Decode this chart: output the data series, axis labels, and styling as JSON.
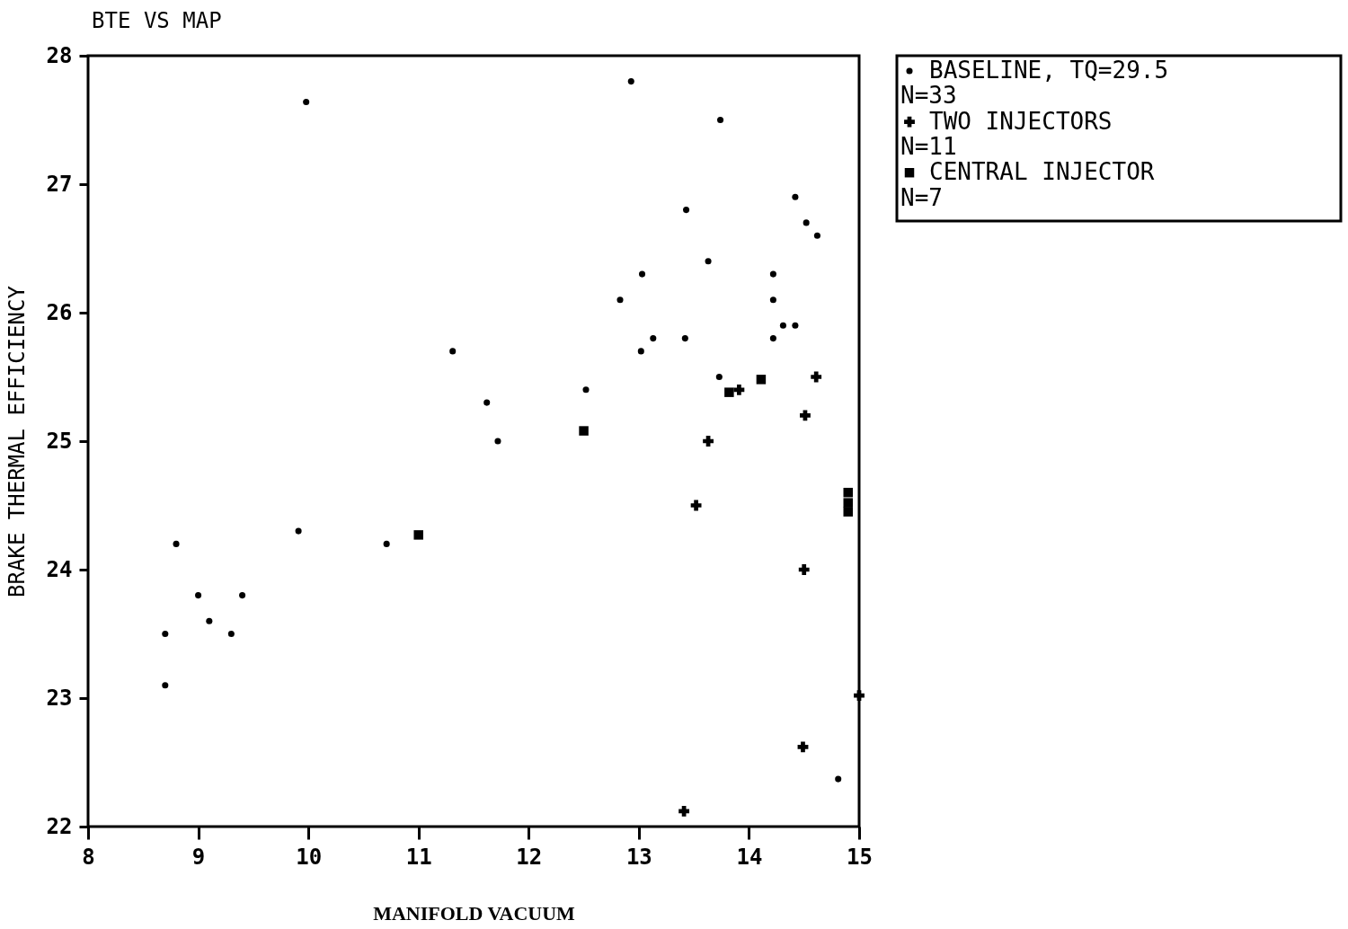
{
  "chart_data": {
    "type": "scatter",
    "title": "BTE VS MAP",
    "xlabel": "MANIFOLD VACUUM",
    "ylabel": "BRAKE THERMAL EFFICIENCY",
    "xlim": [
      8,
      15
    ],
    "ylim": [
      22,
      28
    ],
    "xticks": [
      8,
      9,
      10,
      11,
      12,
      13,
      14,
      15
    ],
    "yticks": [
      22,
      23,
      24,
      25,
      26,
      27,
      28
    ],
    "grid": false,
    "legend": "right",
    "series": [
      {
        "name": "BASELINE, TQ=29.5\nN=33",
        "color": "#000000",
        "marker": "circle",
        "x": [
          9.98,
          11.31,
          12.93,
          13.74,
          13.43,
          14.42,
          14.52,
          14.62,
          13.63,
          13.03,
          12.83,
          14.22,
          14.22,
          14.31,
          14.42,
          13.13,
          13.42,
          14.22,
          13.02,
          13.73,
          12.52,
          11.62,
          11.72,
          8.8,
          9.91,
          10.71,
          9.0,
          9.4,
          9.1,
          8.7,
          9.3,
          8.7,
          14.81
        ],
        "values": [
          27.64,
          25.7,
          27.8,
          27.5,
          26.8,
          26.9,
          26.7,
          26.6,
          26.4,
          26.3,
          26.1,
          26.3,
          26.1,
          25.9,
          25.9,
          25.8,
          25.8,
          25.8,
          25.7,
          25.5,
          25.4,
          25.3,
          25.0,
          24.2,
          24.3,
          24.2,
          23.8,
          23.8,
          23.6,
          23.5,
          23.5,
          23.1,
          22.37
        ]
      },
      {
        "name": "TWO INJECTORS\nN=11",
        "color": "#000000",
        "marker": "cross",
        "x": [
          13.91,
          14.61,
          14.51,
          13.63,
          13.52,
          14.5,
          14.49,
          13.41,
          15.0
        ],
        "values": [
          25.4,
          25.5,
          25.2,
          25.0,
          24.5,
          24.0,
          22.62,
          22.12,
          23.02
        ]
      },
      {
        "name": "CENTRAL INJECTOR\nN=7",
        "color": "#000000",
        "marker": "square",
        "x": [
          11.0,
          12.5,
          13.82,
          14.11,
          14.9,
          14.9,
          14.9
        ],
        "values": [
          24.27,
          25.08,
          25.38,
          25.48,
          24.6,
          24.52,
          24.45
        ]
      }
    ]
  }
}
